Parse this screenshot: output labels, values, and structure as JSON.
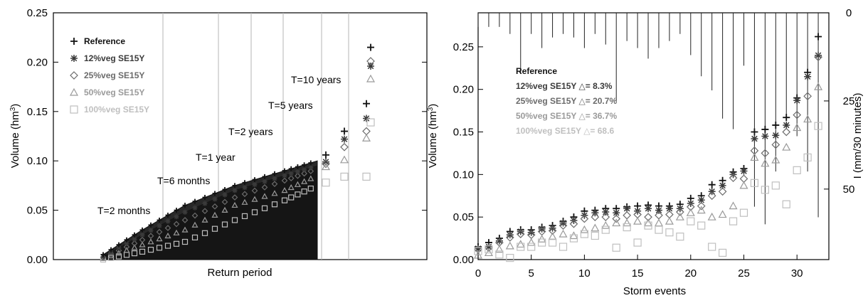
{
  "chart_data": [
    {
      "type": "scatter",
      "title": "",
      "xlabel": "Return period",
      "ylabel": "Volume (hm",
      "ylabel_sup": "3",
      "ylabel_end": ")",
      "ylim": [
        0,
        0.25
      ],
      "yticks": [
        "0.00",
        "0.05",
        "0.10",
        "0.15",
        "0.20",
        "0.25"
      ],
      "legend_position": "top-left",
      "series": [
        {
          "name": "Reference",
          "marker": "+",
          "color": "#111111",
          "upper_points": [
            0.106,
            0.13,
            0.158,
            0.215
          ],
          "curve": [
            0.005,
            0.03,
            0.055,
            0.075,
            0.09,
            0.1
          ]
        },
        {
          "name": "12%veg SE15Y",
          "marker": "*",
          "color": "#3a3a3a",
          "upper_points": [
            0.099,
            0.122,
            0.143,
            0.196
          ],
          "curve": [
            0.003,
            0.025,
            0.048,
            0.07,
            0.085,
            0.095
          ]
        },
        {
          "name": "25%veg SE15Y",
          "marker": "diamond",
          "color": "#6b6b6b",
          "upper_points": [
            0.097,
            0.114,
            0.13,
            0.201
          ],
          "curve": [
            0.002,
            0.02,
            0.04,
            0.063,
            0.08,
            0.092
          ]
        },
        {
          "name": "50%veg SE15Y",
          "marker": "triangle",
          "color": "#9a9a9a",
          "upper_points": [
            0.094,
            0.101,
            0.123,
            0.183
          ],
          "curve": [
            0.001,
            0.015,
            0.03,
            0.055,
            0.07,
            0.085
          ]
        },
        {
          "name": "100%veg SE15Y",
          "marker": "square",
          "color": "#bfbfbf",
          "upper_points": [
            0.078,
            0.084,
            0.084,
            0.139
          ],
          "curve": [
            0.0,
            0.008,
            0.018,
            0.04,
            0.06,
            0.075
          ]
        }
      ],
      "annotations": [
        "T=2 months",
        "T=6 months",
        "T=1 year",
        "T=2 years",
        "T=5 years",
        "T=10 years"
      ]
    },
    {
      "type": "scatter",
      "title": "",
      "xlabel": "Storm events",
      "ylabel": "Volume (hm",
      "ylabel_sup": "3",
      "ylabel_end": ")",
      "y2label": "I (mm/30 minutes)",
      "xlim": [
        0,
        33
      ],
      "ylim": [
        0,
        0.29
      ],
      "xticks": [
        "0",
        "5",
        "10",
        "15",
        "20",
        "25",
        "30"
      ],
      "yticks": [
        "0.00",
        "0.05",
        "0.10",
        "0.15",
        "0.20",
        "0.25"
      ],
      "y2ticks": [
        "0",
        "25",
        "50"
      ],
      "y2lim": [
        0,
        70
      ],
      "legend_position": "upper-center",
      "x": [
        0,
        1,
        2,
        3,
        4,
        5,
        6,
        7,
        8,
        9,
        10,
        11,
        12,
        13,
        14,
        15,
        16,
        17,
        18,
        19,
        20,
        21,
        22,
        23,
        24,
        25,
        26,
        27,
        28,
        29,
        30,
        31,
        32
      ],
      "rainfall_intensity": [
        4,
        4,
        4,
        6,
        17,
        6,
        10,
        7,
        6,
        7,
        10,
        6,
        9,
        25,
        8,
        10,
        13,
        10,
        8,
        6,
        12,
        18,
        22,
        30,
        33,
        15,
        55,
        60,
        45,
        30,
        35,
        45,
        58
      ],
      "series": [
        {
          "name": "Reference",
          "marker": "+",
          "color": "#111111",
          "values": [
            0.015,
            0.02,
            0.025,
            0.033,
            0.035,
            0.035,
            0.038,
            0.04,
            0.045,
            0.05,
            0.057,
            0.058,
            0.06,
            0.06,
            0.062,
            0.063,
            0.064,
            0.063,
            0.063,
            0.065,
            0.072,
            0.075,
            0.088,
            0.093,
            0.103,
            0.107,
            0.15,
            0.153,
            0.158,
            0.167,
            0.19,
            0.22,
            0.262
          ]
        },
        {
          "name": "12%veg SE15Y",
          "marker": "*",
          "color": "#3a3a3a",
          "delta": "8.3%",
          "values": [
            0.013,
            0.015,
            0.022,
            0.029,
            0.033,
            0.032,
            0.036,
            0.037,
            0.043,
            0.046,
            0.052,
            0.055,
            0.056,
            0.055,
            0.06,
            0.057,
            0.06,
            0.058,
            0.06,
            0.06,
            0.066,
            0.07,
            0.08,
            0.087,
            0.1,
            0.104,
            0.142,
            0.145,
            0.146,
            0.158,
            0.187,
            0.215,
            0.24
          ]
        },
        {
          "name": "25%veg SE15Y",
          "marker": "diamond",
          "color": "#6b6b6b",
          "delta": "20.7%",
          "values": [
            0.012,
            0.014,
            0.02,
            0.026,
            0.03,
            0.029,
            0.033,
            0.034,
            0.04,
            0.042,
            0.048,
            0.05,
            0.05,
            0.048,
            0.052,
            0.053,
            0.05,
            0.052,
            0.053,
            0.056,
            0.062,
            0.063,
            0.075,
            0.08,
            0.096,
            0.095,
            0.128,
            0.125,
            0.135,
            0.15,
            0.17,
            0.192,
            0.238
          ]
        },
        {
          "name": "50%veg SE15Y",
          "marker": "triangle",
          "color": "#9a9a9a",
          "delta": "36.7%",
          "values": [
            0.005,
            0.008,
            0.012,
            0.016,
            0.018,
            0.02,
            0.024,
            0.027,
            0.03,
            0.028,
            0.035,
            0.037,
            0.04,
            0.043,
            0.043,
            0.045,
            0.043,
            0.043,
            0.045,
            0.05,
            0.055,
            0.058,
            0.05,
            0.053,
            0.063,
            0.087,
            0.12,
            0.113,
            0.117,
            0.132,
            0.155,
            0.165,
            0.203
          ]
        },
        {
          "name": "100%veg SE15Y",
          "marker": "square",
          "color": "#bfbfbf",
          "delta": "68.6",
          "values": [
            0.01,
            0.012,
            0.006,
            0.002,
            0.015,
            0.015,
            0.02,
            0.02,
            0.015,
            0.025,
            0.03,
            0.028,
            0.035,
            0.014,
            0.038,
            0.02,
            0.04,
            0.035,
            0.032,
            0.027,
            0.045,
            0.04,
            0.015,
            0.008,
            0.045,
            0.055,
            0.09,
            0.082,
            0.087,
            0.065,
            0.105,
            0.12,
            0.157
          ]
        }
      ]
    }
  ]
}
